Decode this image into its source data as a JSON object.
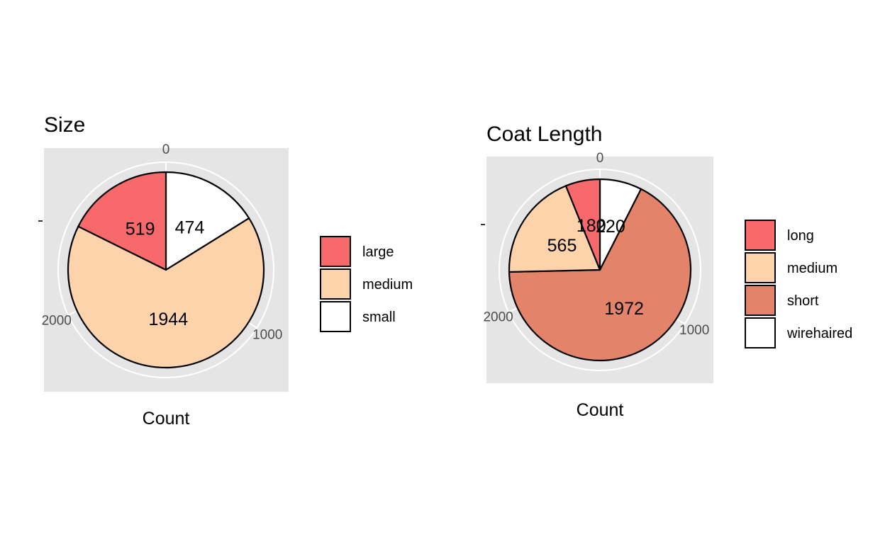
{
  "chart_data": [
    {
      "type": "pie",
      "title": "Size",
      "xlabel": "Count",
      "ylabel": "",
      "scale_ticks": [
        {
          "label": "0",
          "value": 0
        },
        {
          "label": "1000",
          "value": 1000
        },
        {
          "label": "2000",
          "value": 2000
        }
      ],
      "total": 2937,
      "slices": [
        {
          "label": "small",
          "value": 474,
          "color": "#ffffff"
        },
        {
          "label": "medium",
          "value": 1944,
          "color": "#fdd3ac"
        },
        {
          "label": "large",
          "value": 519,
          "color": "#f8696b"
        }
      ],
      "legend": {
        "placement": "right",
        "entries": [
          {
            "label": "large",
            "color": "#f8696b"
          },
          {
            "label": "medium",
            "color": "#fdd3ac"
          },
          {
            "label": "small",
            "color": "#ffffff"
          }
        ]
      }
    },
    {
      "type": "pie",
      "title": "Coat Length",
      "xlabel": "Count",
      "ylabel": "",
      "scale_ticks": [
        {
          "label": "0",
          "value": 0
        },
        {
          "label": "1000",
          "value": 1000
        },
        {
          "label": "2000",
          "value": 2000
        }
      ],
      "total": 2937,
      "slices": [
        {
          "label": "wirehaired",
          "value": 220,
          "color": "#ffffff"
        },
        {
          "label": "short",
          "value": 1972,
          "color": "#e2836a"
        },
        {
          "label": "medium",
          "value": 565,
          "color": "#fdd3ac"
        },
        {
          "label": "long",
          "value": 180,
          "color": "#f8696b"
        }
      ],
      "legend": {
        "placement": "right",
        "entries": [
          {
            "label": "long",
            "color": "#f8696b"
          },
          {
            "label": "medium",
            "color": "#fdd3ac"
          },
          {
            "label": "short",
            "color": "#e2836a"
          },
          {
            "label": "wirehaired",
            "color": "#ffffff"
          }
        ]
      }
    }
  ]
}
